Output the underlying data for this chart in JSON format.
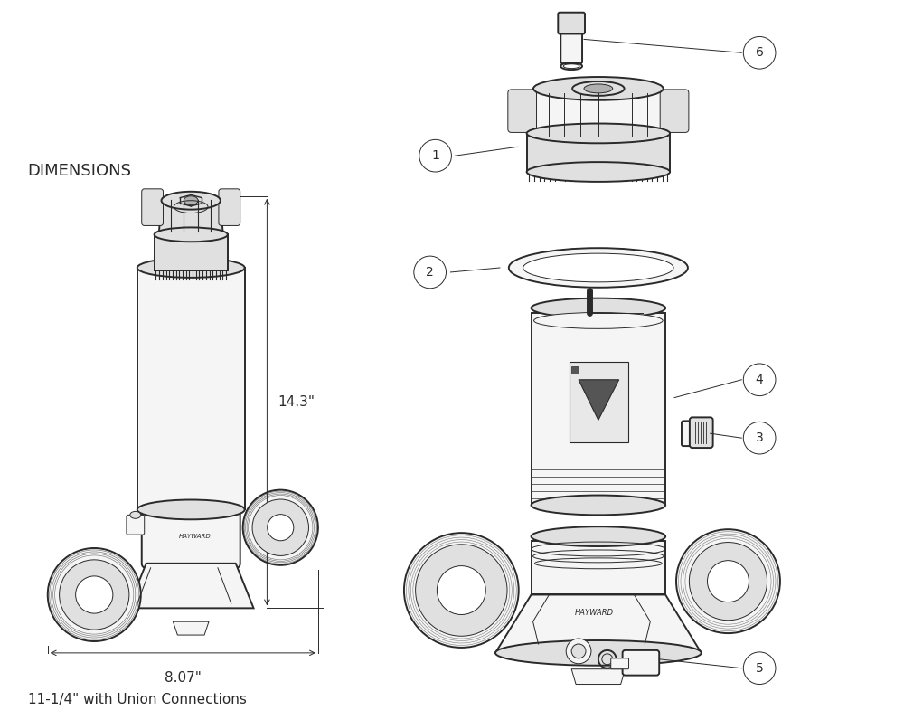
{
  "background_color": "#ffffff",
  "line_color": "#2a2a2a",
  "fill_light": "#f5f5f5",
  "fill_mid": "#e0e0e0",
  "fill_dark": "#b0b0b0",
  "dimensions_label": "DIMENSIONS",
  "dim_height": "14.3\"",
  "dim_width": "8.07\"",
  "dim_note": "11-1/4\" with Union Connections",
  "callout_numbers": [
    1,
    2,
    3,
    4,
    5,
    6
  ],
  "lw_main": 1.4,
  "lw_thin": 0.7,
  "lw_thick": 2.0
}
